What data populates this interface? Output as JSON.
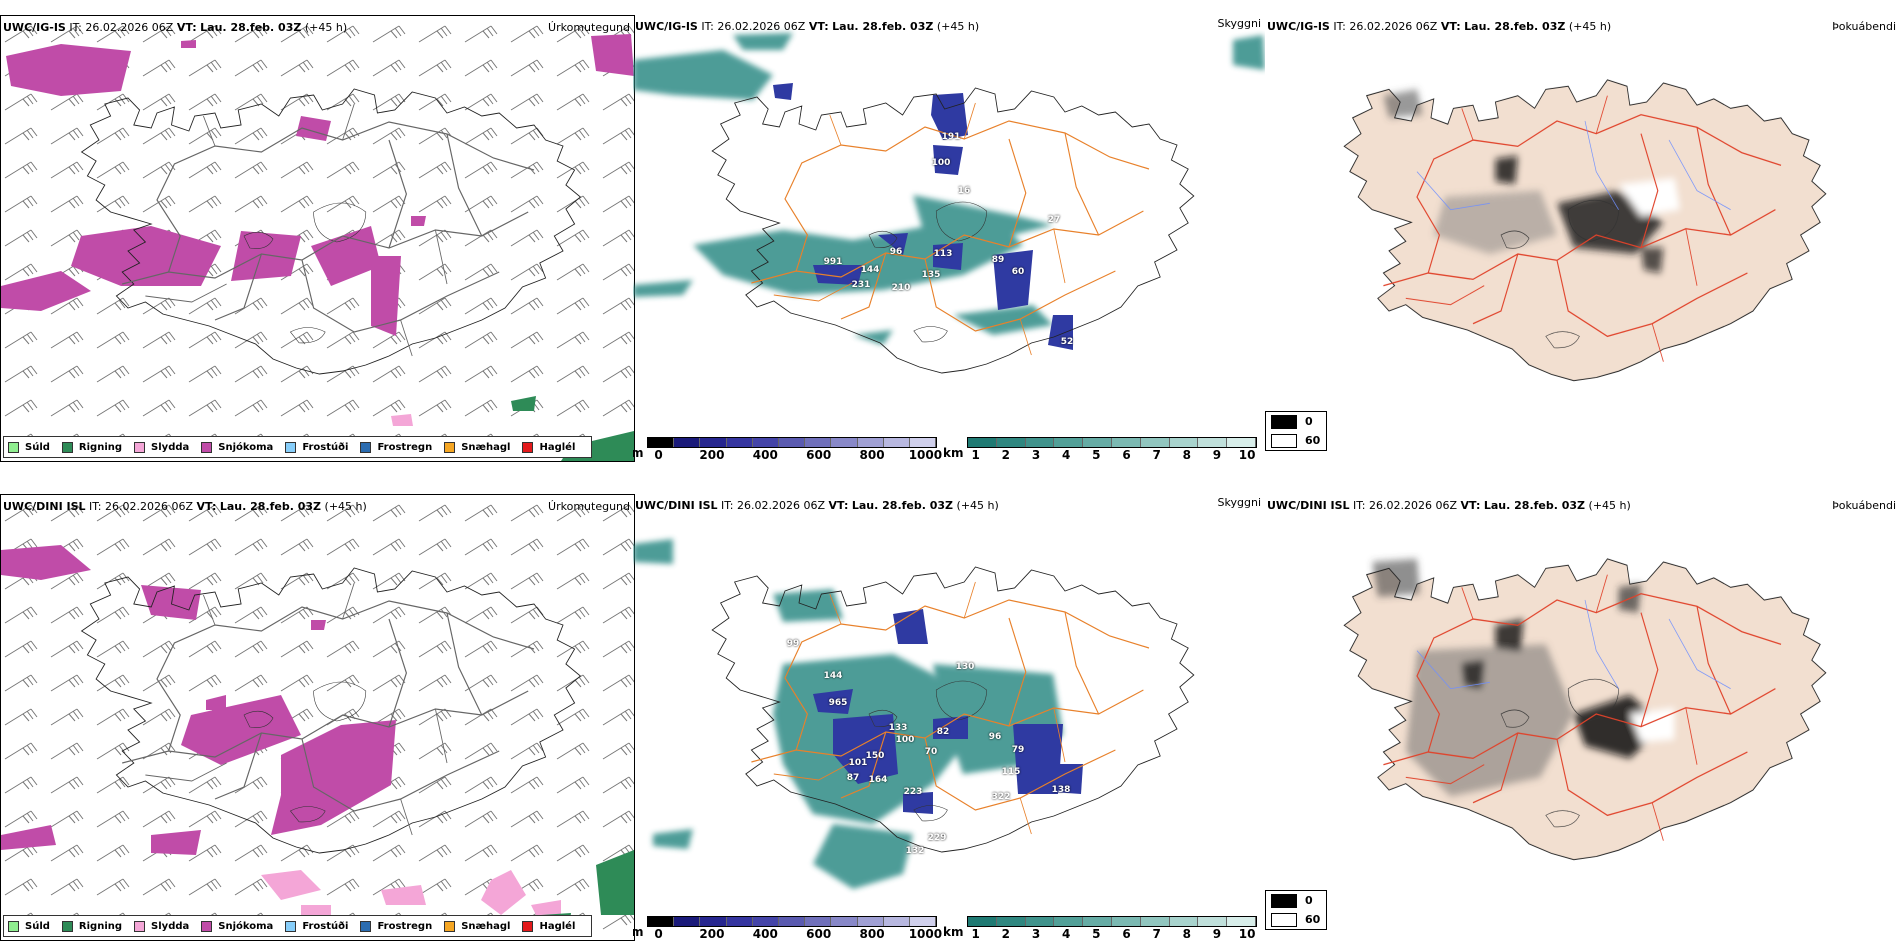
{
  "rows": [
    {
      "model": "UWC/IG-IS",
      "it_label": "IT:",
      "it_value": "26.02.2026 06Z",
      "vt_label": "VT:",
      "vt_value": "Lau. 28.feb. 03Z",
      "offset": "(+45 h)",
      "cloud_labels": [
        "991",
        "144",
        "96",
        "113",
        "231",
        "210",
        "135",
        "89",
        "60",
        "191",
        "100",
        "16",
        "27",
        "52"
      ]
    },
    {
      "model": "UWC/DINI ISL",
      "it_label": "IT:",
      "it_value": "26.02.2026 06Z",
      "vt_label": "VT:",
      "vt_value": "Lau. 28.feb. 03Z",
      "offset": "(+45 h)",
      "cloud_labels": [
        "99",
        "144",
        "965",
        "133",
        "100",
        "82",
        "96",
        "79",
        "101",
        "150",
        "87",
        "164",
        "223",
        "115",
        "322",
        "138",
        "229",
        "132",
        "70",
        "130"
      ]
    }
  ],
  "panel_titles": {
    "precip": "Úrkomutegund",
    "clouds": "Skyggni",
    "fog": "Þokuábendi"
  },
  "precip_legend": [
    {
      "label": "Súld",
      "color": "#90ee90"
    },
    {
      "label": "Rigning",
      "color": "#2e8b57"
    },
    {
      "label": "Slydda",
      "color": "#f4a6d7"
    },
    {
      "label": "Snjókoma",
      "color": "#c04ca8"
    },
    {
      "label": "Frostúði",
      "color": "#87cefa"
    },
    {
      "label": "Frostregn",
      "color": "#2b6cb0"
    },
    {
      "label": "Snæhagl",
      "color": "#f5a623"
    },
    {
      "label": "Haglél",
      "color": "#e31a1c"
    }
  ],
  "cloudbase_scale": {
    "unit": "m",
    "ticks": [
      "0",
      "200",
      "400",
      "600",
      "800",
      "1000"
    ],
    "colors": [
      "#000000",
      "#1a1a7a",
      "#26268f",
      "#3535a0",
      "#4444a8",
      "#5a5ab0",
      "#7070bb",
      "#8888c8",
      "#a0a0d4",
      "#b8b8e0",
      "#d0d0ec"
    ]
  },
  "visibility_scale": {
    "unit": "km",
    "ticks": [
      "1",
      "2",
      "3",
      "4",
      "5",
      "6",
      "7",
      "8",
      "9",
      "10"
    ],
    "colors": [
      "#1f7a73",
      "#2f8780",
      "#40938c",
      "#52a098",
      "#66aca5",
      "#7bb9b2",
      "#91c6bf",
      "#a8d3cd",
      "#c0e0db",
      "#d8eeea"
    ]
  },
  "fog_scale": [
    {
      "label": "0",
      "color": "#000000"
    },
    {
      "label": "60",
      "color": "#ffffff"
    }
  ]
}
